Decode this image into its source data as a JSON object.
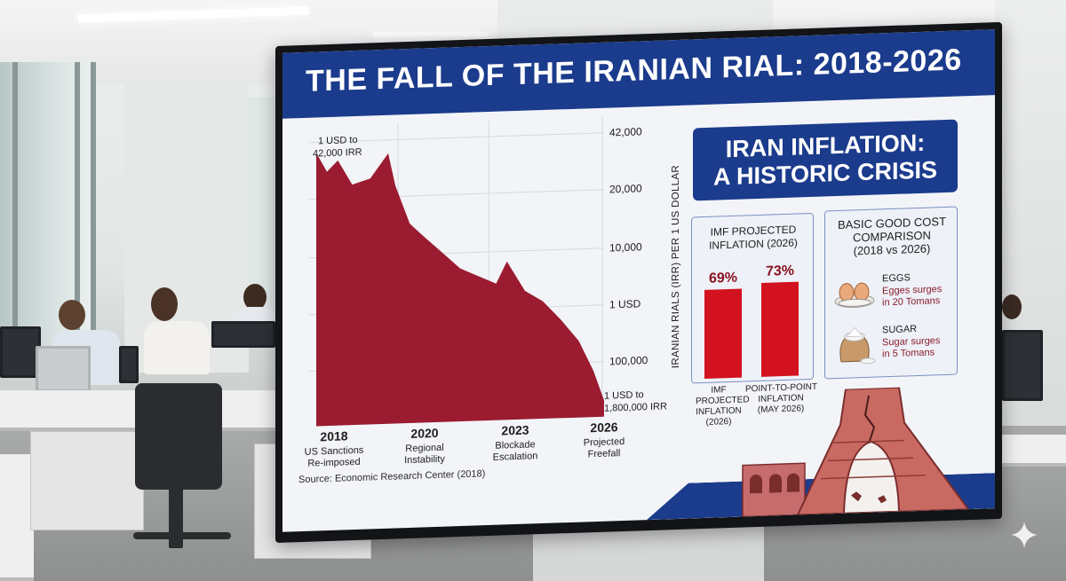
{
  "screen": {
    "title": "THE FALL OF THE IRANIAN RIAL: 2018-2026",
    "source": "Source: Economic Research Center (2018)"
  },
  "chart_data": {
    "type": "area",
    "title": "THE FALL OF THE IRANIAN RIAL: 2018-2026",
    "ylabel": "IRANIAN RIALS (IRR) PER 1 US DOLLAR",
    "y_tick_labels": [
      "42,000",
      "20,000",
      "10,000",
      "1 USD",
      "100,000"
    ],
    "x": [
      2018,
      2018.3,
      2018.6,
      2019,
      2019.5,
      2020,
      2020.2,
      2020.6,
      2021,
      2021.5,
      2022,
      2022.5,
      2023,
      2023.3,
      2023.8,
      2024.3,
      2024.8,
      2025.3,
      2025.7,
      2026
    ],
    "y": [
      1.0,
      0.93,
      0.97,
      0.88,
      0.9,
      0.99,
      0.87,
      0.73,
      0.68,
      0.62,
      0.56,
      0.53,
      0.5,
      0.58,
      0.47,
      0.43,
      0.36,
      0.28,
      0.17,
      0.06
    ],
    "y_units": "relative value (top of axis = 1)",
    "x_labels": [
      {
        "year": "2018",
        "event": "US Sanctions Re-imposed"
      },
      {
        "year": "2020",
        "event": "Regional Instability"
      },
      {
        "year": "2023",
        "event": "Blockade Escalation"
      },
      {
        "year": "2026",
        "event": "Projected Freefall"
      }
    ],
    "annotations": [
      {
        "text": "1 USD to 42,000 IRR"
      },
      {
        "text": "1 USD to 1,800,000 IRR"
      }
    ],
    "colors": {
      "area": "#9b1b30",
      "grid": "#d5d9e0"
    }
  },
  "crisis": {
    "line1": "IRAN INFLATION:",
    "line2": "A HISTORIC CRISIS"
  },
  "imf": {
    "title_line1": "IMF PROJECTED",
    "title_line2": "INFLATION (2026)",
    "bars": [
      {
        "label": "69%",
        "value": 69,
        "caption": [
          "IMF",
          "PROJECTED",
          "INFLATION",
          "(2026)"
        ]
      },
      {
        "label": "73%",
        "value": 73,
        "caption": [
          "POINT-TO-POINT",
          "INFLATION",
          "(MAY 2026)"
        ]
      }
    ],
    "bar_color": "#d3121f"
  },
  "cost": {
    "title_line1": "BASIC GOOD COST",
    "title_line2": "COMPARISON",
    "title_line3": "(2018 vs 2026)",
    "items": [
      {
        "name": "EGGS",
        "note_line1": "Egges surges",
        "note_line2": "in 20 Tomans",
        "icon": "eggs-icon"
      },
      {
        "name": "SUGAR",
        "note_line1": "Sugar surges",
        "note_line2": "in 5 Tomans",
        "icon": "sugar-sack-icon"
      }
    ]
  },
  "colors": {
    "navy": "#1b3b8c",
    "crimson": "#9b1b30",
    "red": "#d3121f"
  }
}
